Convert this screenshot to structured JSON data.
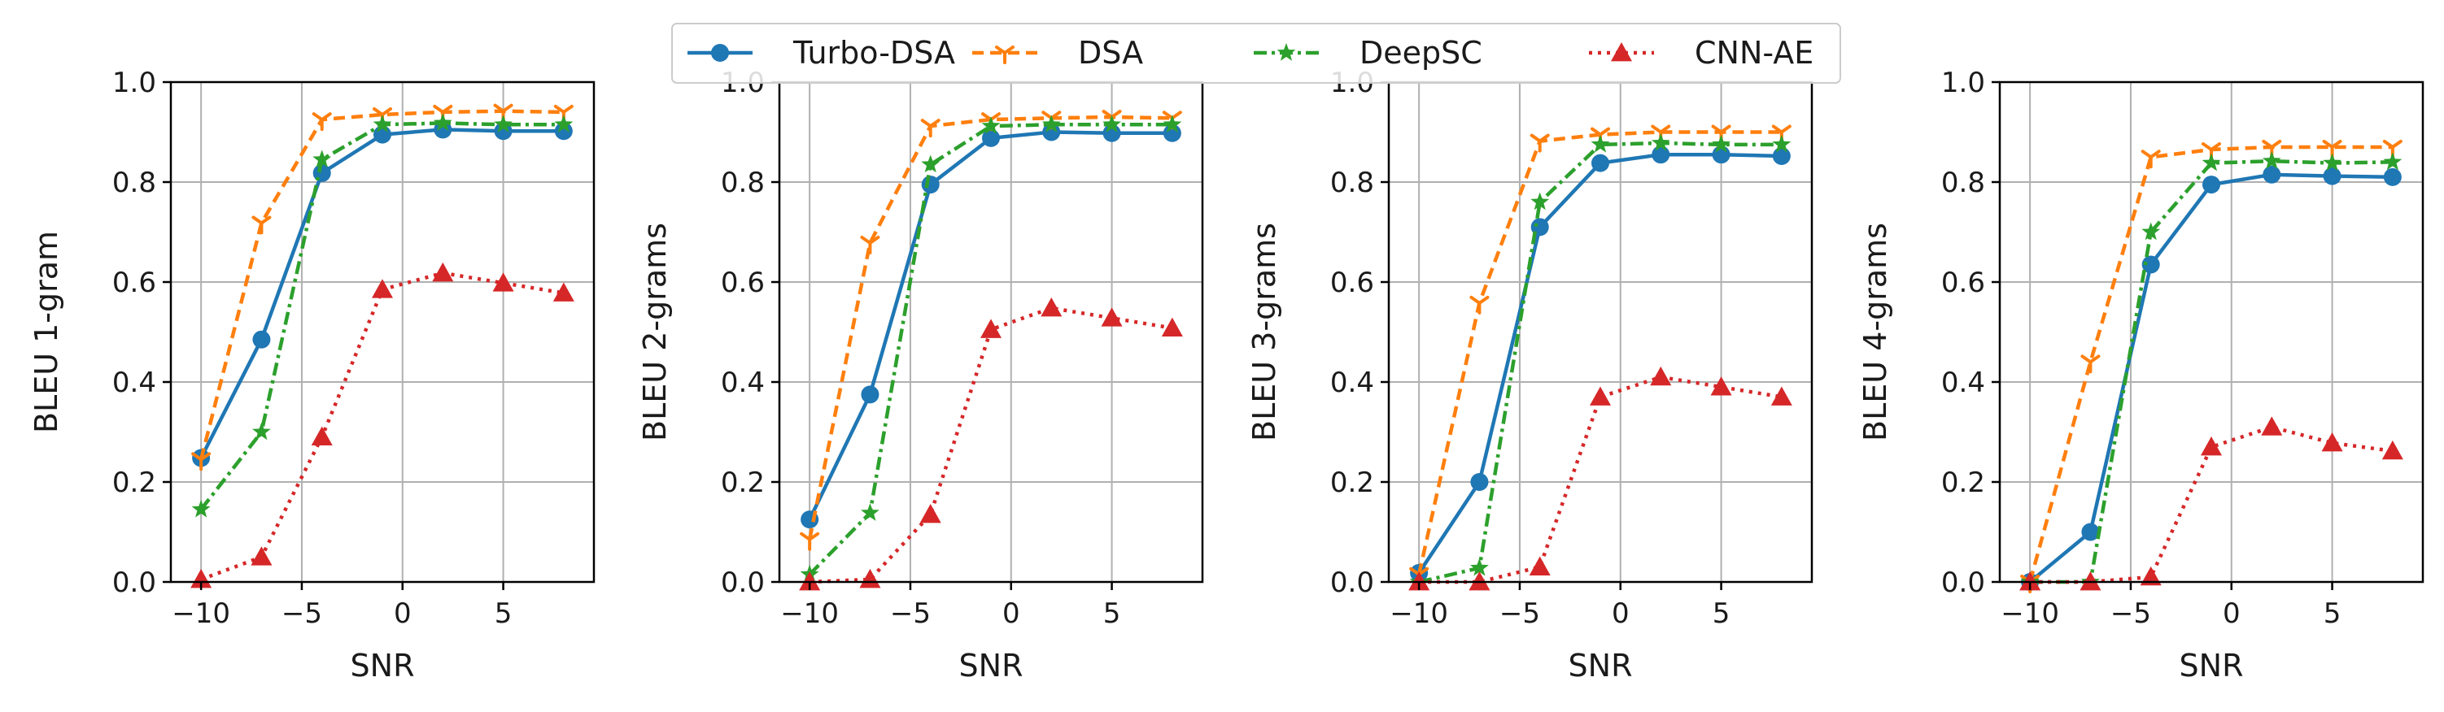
{
  "chart_data": [
    {
      "type": "line",
      "xlabel": "SNR",
      "ylabel": "BLEU 1-gram",
      "xlim": [
        -11.5,
        9.5
      ],
      "ylim": [
        0,
        1.0
      ],
      "xticks": [
        "−10",
        "−5",
        "0",
        "5"
      ],
      "yticks": [
        "0.0",
        "0.2",
        "0.4",
        "0.6",
        "0.8",
        "1.0"
      ],
      "x": [
        -10,
        -7,
        -4,
        -1,
        2,
        5,
        8
      ],
      "series": [
        {
          "name": "Turbo-DSA",
          "values": [
            0.248,
            0.485,
            0.818,
            0.895,
            0.905,
            0.902,
            0.902
          ]
        },
        {
          "name": "DSA",
          "values": [
            0.245,
            0.718,
            0.925,
            0.935,
            0.94,
            0.942,
            0.94
          ]
        },
        {
          "name": "DeepSC",
          "values": [
            0.145,
            0.3,
            0.845,
            0.915,
            0.918,
            0.915,
            0.915
          ]
        },
        {
          "name": "CNN-AE",
          "values": [
            0.005,
            0.05,
            0.29,
            0.585,
            0.618,
            0.598,
            0.578
          ]
        }
      ]
    },
    {
      "type": "line",
      "xlabel": "SNR",
      "ylabel": "BLEU 2-grams",
      "xlim": [
        -11.5,
        9.5
      ],
      "ylim": [
        0,
        1.0
      ],
      "xticks": [
        "−10",
        "−5",
        "0",
        "5"
      ],
      "yticks": [
        "0.0",
        "0.2",
        "0.4",
        "0.6",
        "0.8",
        "1.0"
      ],
      "x": [
        -10,
        -7,
        -4,
        -1,
        2,
        5,
        8
      ],
      "series": [
        {
          "name": "Turbo-DSA",
          "values": [
            0.125,
            0.375,
            0.795,
            0.888,
            0.9,
            0.898,
            0.898
          ]
        },
        {
          "name": "DSA",
          "values": [
            0.085,
            0.678,
            0.912,
            0.925,
            0.928,
            0.93,
            0.928
          ]
        },
        {
          "name": "DeepSC",
          "values": [
            0.015,
            0.138,
            0.835,
            0.912,
            0.915,
            0.915,
            0.915
          ]
        },
        {
          "name": "CNN-AE",
          "values": [
            0.0,
            0.005,
            0.135,
            0.505,
            0.548,
            0.528,
            0.508
          ]
        }
      ]
    },
    {
      "type": "line",
      "xlabel": "SNR",
      "ylabel": "BLEU 3-grams",
      "xlim": [
        -11.5,
        9.5
      ],
      "ylim": [
        0,
        1.0
      ],
      "xticks": [
        "−10",
        "−5",
        "0",
        "5"
      ],
      "yticks": [
        "0.0",
        "0.2",
        "0.4",
        "0.6",
        "0.8",
        "1.0"
      ],
      "x": [
        -10,
        -7,
        -4,
        -1,
        2,
        5,
        8
      ],
      "series": [
        {
          "name": "Turbo-DSA",
          "values": [
            0.018,
            0.2,
            0.71,
            0.838,
            0.855,
            0.855,
            0.852
          ]
        },
        {
          "name": "DSA",
          "values": [
            0.015,
            0.558,
            0.882,
            0.895,
            0.9,
            0.9,
            0.9
          ]
        },
        {
          "name": "DeepSC",
          "values": [
            0.0,
            0.028,
            0.76,
            0.875,
            0.878,
            0.875,
            0.875
          ]
        },
        {
          "name": "CNN-AE",
          "values": [
            0.0,
            0.0,
            0.03,
            0.37,
            0.41,
            0.39,
            0.37
          ]
        }
      ]
    },
    {
      "type": "line",
      "xlabel": "SNR",
      "ylabel": "BLEU 4-grams",
      "xlim": [
        -11.5,
        9.5
      ],
      "ylim": [
        0,
        1.0
      ],
      "xticks": [
        "−10",
        "−5",
        "0",
        "5"
      ],
      "yticks": [
        "0.0",
        "0.2",
        "0.4",
        "0.6",
        "0.8",
        "1.0"
      ],
      "x": [
        -10,
        -7,
        -4,
        -1,
        2,
        5,
        8
      ],
      "series": [
        {
          "name": "Turbo-DSA",
          "values": [
            0.0,
            0.1,
            0.635,
            0.795,
            0.815,
            0.812,
            0.81
          ]
        },
        {
          "name": "DSA",
          "values": [
            0.0,
            0.44,
            0.85,
            0.865,
            0.87,
            0.87,
            0.87
          ]
        },
        {
          "name": "DeepSC",
          "values": [
            0.0,
            0.0,
            0.7,
            0.838,
            0.842,
            0.838,
            0.84
          ]
        },
        {
          "name": "CNN-AE",
          "values": [
            0.0,
            0.0,
            0.01,
            0.27,
            0.31,
            0.278,
            0.262
          ]
        }
      ]
    }
  ],
  "legend": {
    "placement": "top-center",
    "entries": [
      {
        "label": "Turbo-DSA",
        "color": "#1f77b4",
        "marker": "circle",
        "dash": "solid"
      },
      {
        "label": "DSA",
        "color": "#ff7f0e",
        "marker": "tri-down",
        "dash": "dashed"
      },
      {
        "label": "DeepSC",
        "color": "#2ca02c",
        "marker": "star",
        "dash": "dashdot"
      },
      {
        "label": "CNN-AE",
        "color": "#d62728",
        "marker": "triangle-up",
        "dash": "dotted"
      }
    ]
  }
}
